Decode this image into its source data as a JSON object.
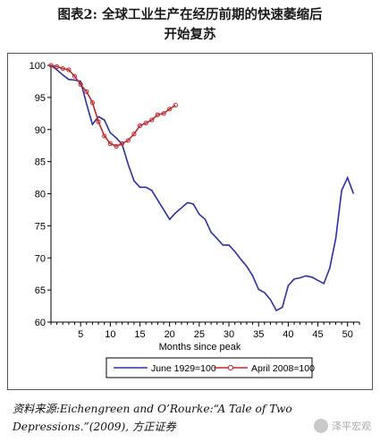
{
  "figure": {
    "title_line1": "图表2:    全球工业生产在经历前期的快速萎缩后",
    "title_line2": "开始复苏"
  },
  "source": "资料来源:Eichengreen and O’Rourke:“A Tale of Two Depressions.”(2009), 方正证券",
  "watermark": "泽平宏观",
  "chart_data": {
    "type": "line",
    "xlabel": "Months since peak",
    "ylabel": "",
    "xlim": [
      0,
      52
    ],
    "ylim": [
      60,
      100
    ],
    "xticks": [
      5,
      10,
      15,
      20,
      25,
      30,
      35,
      40,
      45,
      50
    ],
    "yticks": [
      60,
      65,
      70,
      75,
      80,
      85,
      90,
      95,
      100
    ],
    "grid": false,
    "legend_position": "bottom",
    "series": [
      {
        "name": "June 1929=100",
        "color": "#2b2fa8",
        "marker": "none",
        "x": [
          0,
          1,
          2,
          3,
          4,
          5,
          6,
          7,
          8,
          9,
          10,
          11,
          12,
          13,
          14,
          15,
          16,
          17,
          18,
          19,
          20,
          21,
          22,
          23,
          24,
          25,
          26,
          27,
          28,
          29,
          30,
          31,
          32,
          33,
          34,
          35,
          36,
          37,
          38,
          39,
          40,
          41,
          42,
          43,
          44,
          45,
          46,
          47,
          48,
          49,
          50,
          51
        ],
        "values": [
          100,
          99.3,
          98.5,
          97.8,
          97.7,
          97.5,
          94,
          90.8,
          92,
          91.5,
          89.5,
          88.7,
          87.7,
          84.6,
          82,
          81,
          81,
          80.5,
          79,
          77.5,
          76,
          77,
          77.8,
          78.6,
          78.4,
          76.8,
          76,
          74,
          73,
          72,
          72,
          71,
          69.8,
          68.7,
          67.2,
          65.1,
          64.6,
          63.5,
          61.8,
          62.3,
          65.7,
          66.7,
          66.9,
          67.2,
          67,
          66.5,
          66,
          68.4,
          73,
          80.5,
          82.5,
          80
        ]
      },
      {
        "name": "April 2008=100",
        "color": "#c0282e",
        "marker": "circle",
        "x": [
          0,
          1,
          2,
          3,
          4,
          5,
          6,
          7,
          8,
          9,
          10,
          11,
          12,
          13,
          14,
          15,
          16,
          17,
          18,
          19,
          20,
          21
        ],
        "values": [
          100,
          99.8,
          99.5,
          99.3,
          98.3,
          97,
          95.9,
          94.2,
          91.2,
          89,
          87.8,
          87.4,
          87.8,
          88.3,
          89.3,
          90.6,
          91,
          91.5,
          92.3,
          92.5,
          93.2,
          93.8
        ]
      }
    ]
  }
}
